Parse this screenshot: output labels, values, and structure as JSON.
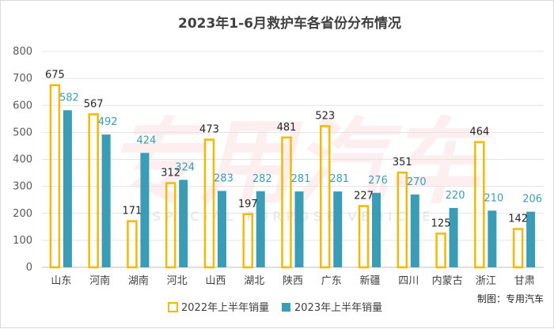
{
  "chart_data": {
    "type": "bar",
    "title": "2023年1-6月救护车各省份分布情况",
    "categories": [
      "山东",
      "河南",
      "湖南",
      "河北",
      "山西",
      "湖北",
      "陕西",
      "广东",
      "新疆",
      "四川",
      "内蒙古",
      "浙江",
      "甘肃"
    ],
    "series": [
      {
        "name": "2022年上半年销量",
        "values": [
          675,
          567,
          171,
          312,
          473,
          197,
          481,
          523,
          227,
          351,
          125,
          464,
          142
        ],
        "color": "#f5b800",
        "style": "outline"
      },
      {
        "name": "2023年上半年销量",
        "values": [
          582,
          492,
          424,
          324,
          283,
          282,
          281,
          281,
          276,
          270,
          220,
          210,
          206
        ],
        "color": "#3a9cb5",
        "style": "solid"
      }
    ],
    "yticks": [
      0,
      100,
      200,
      300,
      400,
      500,
      600,
      700,
      800
    ],
    "ylim": [
      0,
      800
    ],
    "xlabel": "",
    "ylabel": "",
    "grid": true,
    "legend_position": "bottom"
  },
  "credit": "制图：专用汽车",
  "watermark": {
    "main": "专用汽车",
    "sub": "SPECIAL PURPOSE VEHICLE"
  }
}
